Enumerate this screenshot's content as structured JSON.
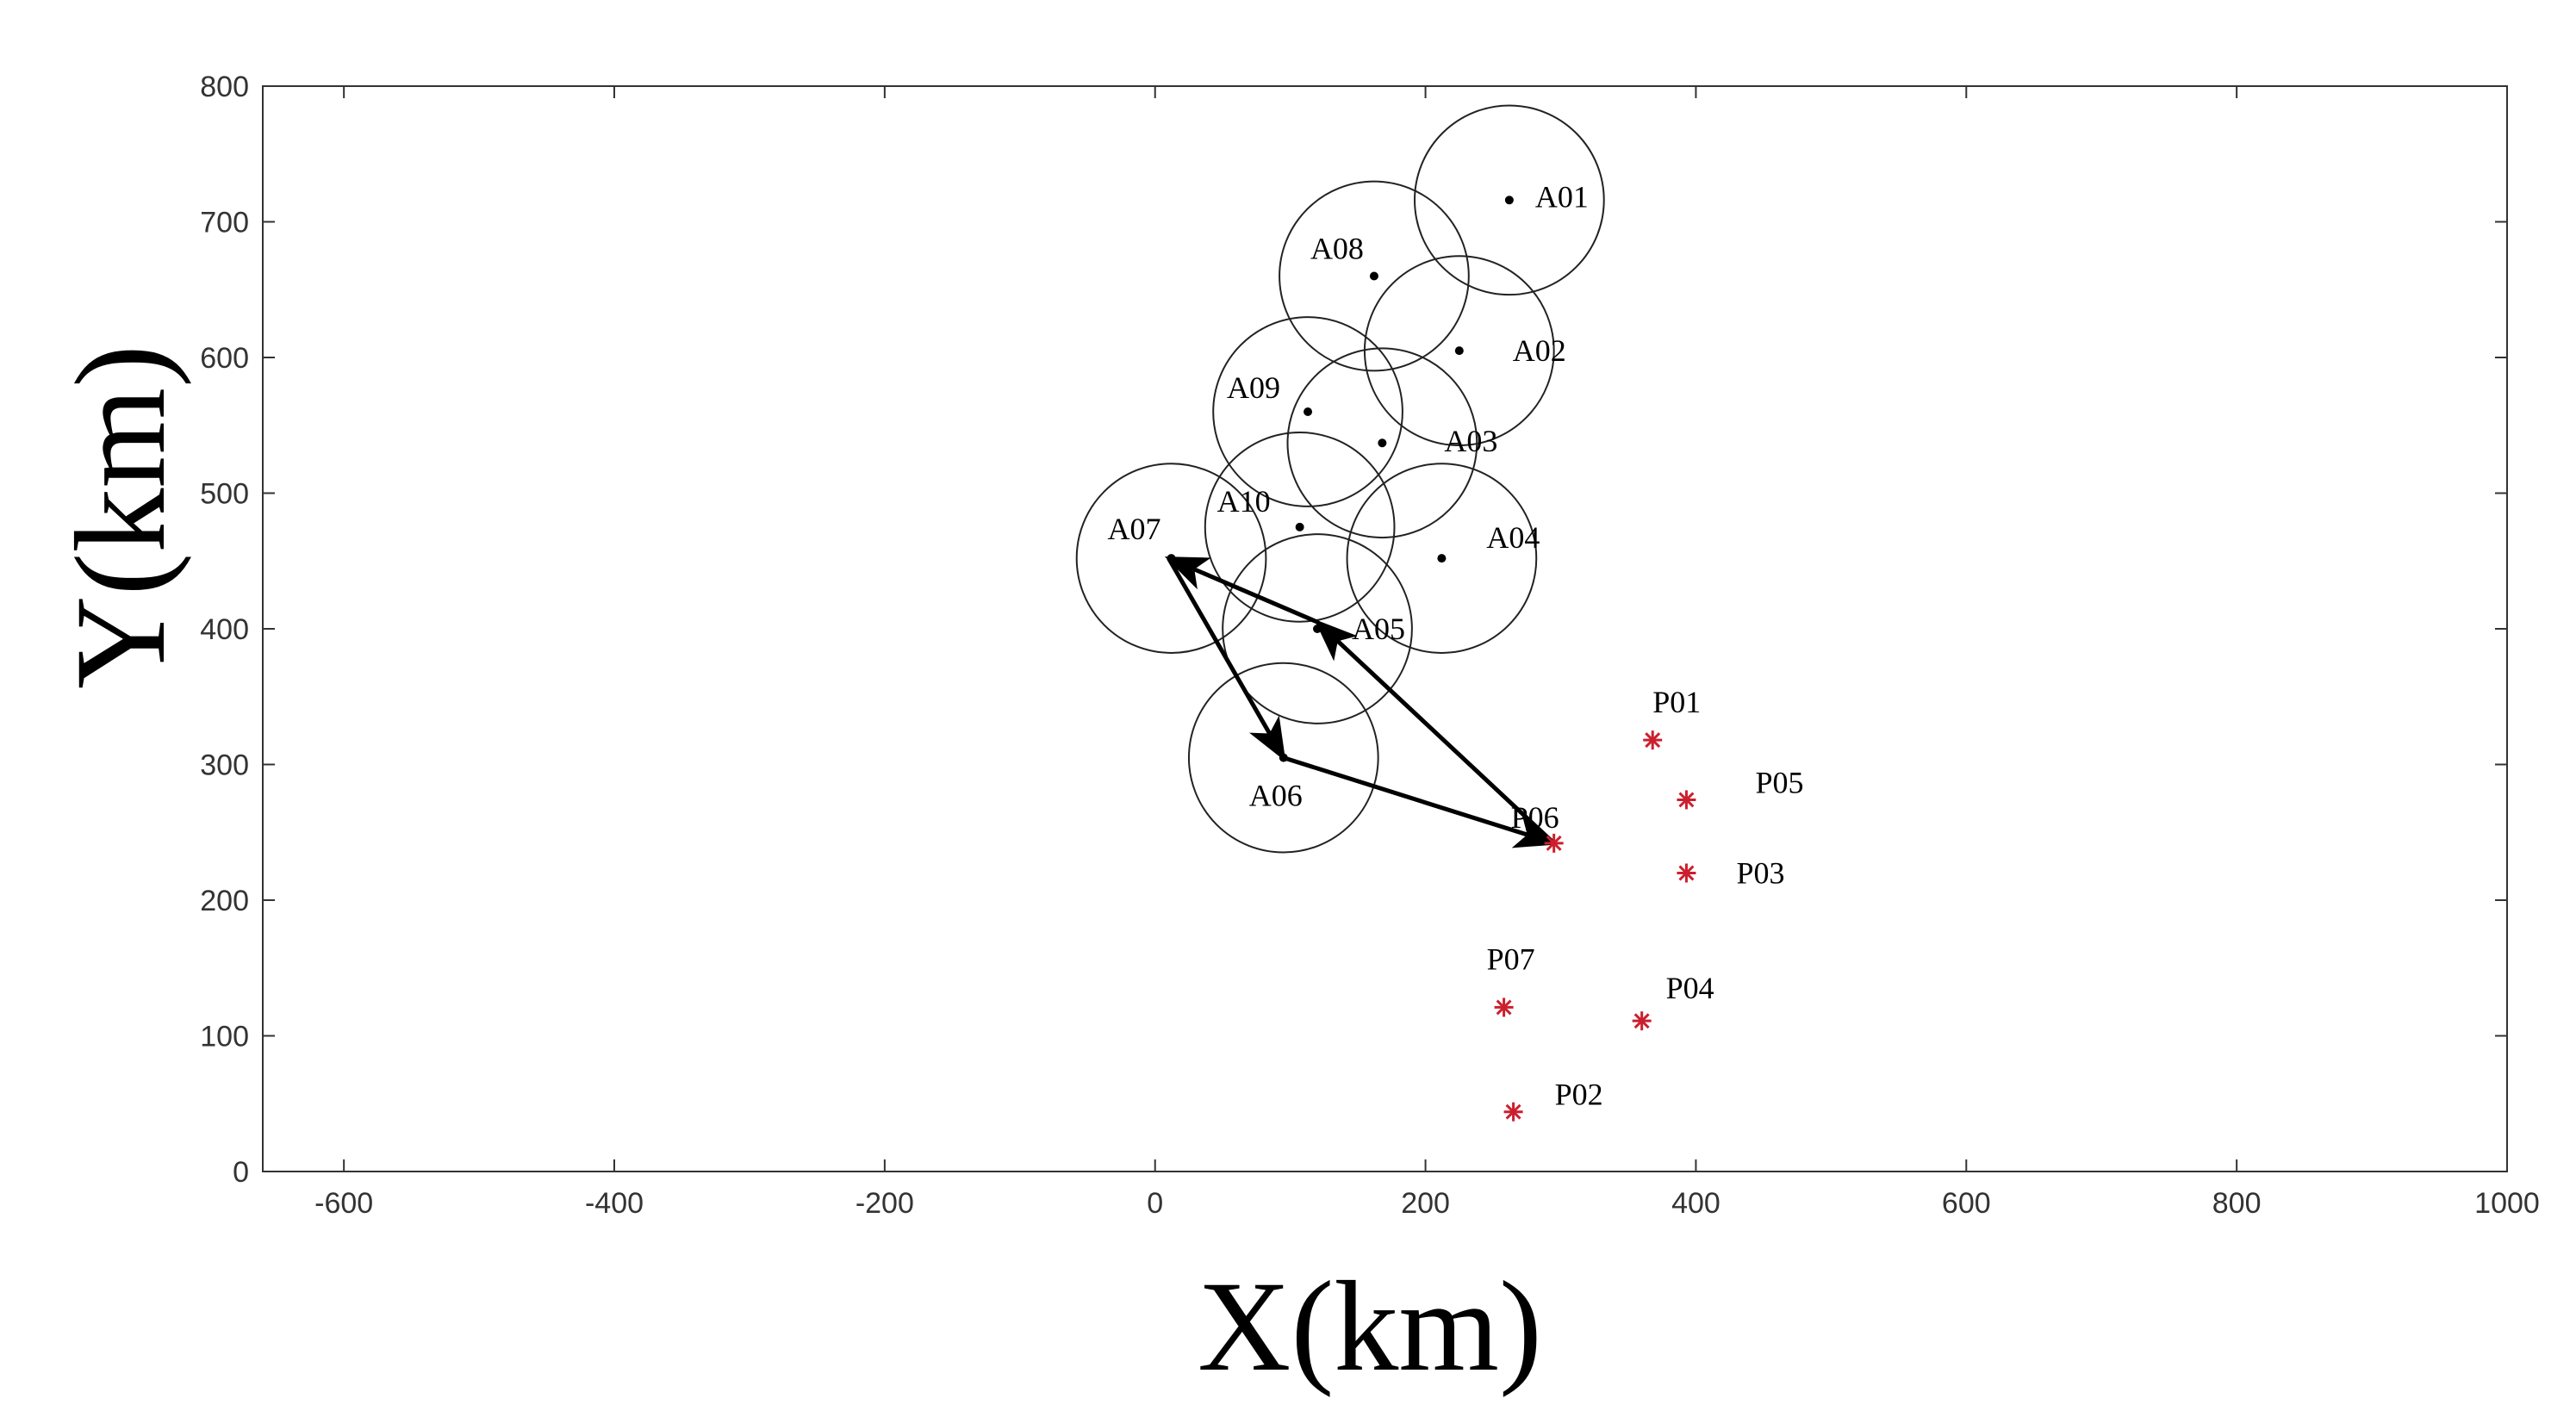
{
  "chart_data": {
    "type": "scatter",
    "xlabel": "X(km)",
    "ylabel": "Y(km)",
    "xlim": [
      -660,
      1000
    ],
    "ylim": [
      0,
      800
    ],
    "x_ticks": [
      -600,
      -400,
      -200,
      0,
      200,
      400,
      600,
      800,
      1000
    ],
    "y_ticks": [
      0,
      100,
      200,
      300,
      400,
      500,
      600,
      700,
      800
    ],
    "grid": false,
    "circle_radius_km": 70,
    "colors": {
      "axes": "#333333",
      "circle": "#222222",
      "area_center": "#000000",
      "p_marker": "#cc1f2d",
      "path": "#000000"
    },
    "areas": [
      {
        "label": "A01",
        "x": 262,
        "y": 716
      },
      {
        "label": "A08",
        "x": 162,
        "y": 660
      },
      {
        "label": "A02",
        "x": 225,
        "y": 605
      },
      {
        "label": "A09",
        "x": 113,
        "y": 560
      },
      {
        "label": "A03",
        "x": 168,
        "y": 537
      },
      {
        "label": "A10",
        "x": 107,
        "y": 475
      },
      {
        "label": "A04",
        "x": 212,
        "y": 452
      },
      {
        "label": "A07",
        "x": 12,
        "y": 452
      },
      {
        "label": "A05",
        "x": 120,
        "y": 400
      },
      {
        "label": "A06",
        "x": 95,
        "y": 305
      }
    ],
    "points": [
      {
        "label": "P01",
        "x": 368,
        "y": 318
      },
      {
        "label": "P05",
        "x": 393,
        "y": 274
      },
      {
        "label": "P06",
        "x": 295,
        "y": 242
      },
      {
        "label": "P03",
        "x": 393,
        "y": 220
      },
      {
        "label": "P07",
        "x": 258,
        "y": 121
      },
      {
        "label": "P04",
        "x": 360,
        "y": 111
      },
      {
        "label": "P02",
        "x": 265,
        "y": 44
      }
    ],
    "route": [
      {
        "x": 295,
        "y": 242
      },
      {
        "x": 120,
        "y": 405
      },
      {
        "x": 10,
        "y": 452
      },
      {
        "x": 95,
        "y": 305
      },
      {
        "x": 295,
        "y": 242
      }
    ]
  }
}
